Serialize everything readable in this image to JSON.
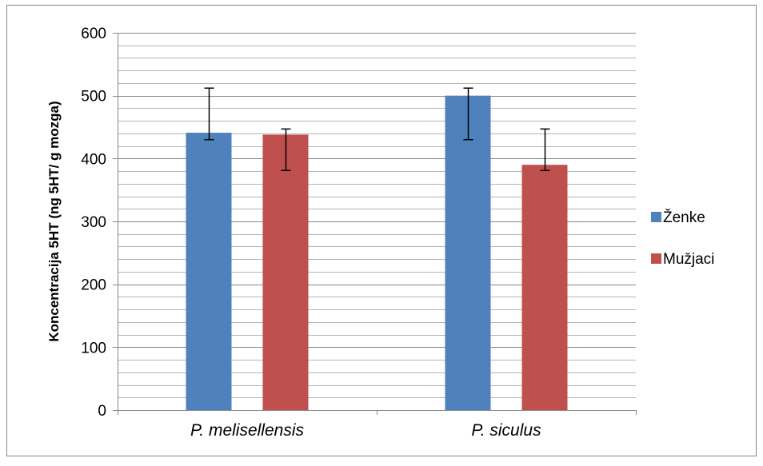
{
  "chart_data": {
    "type": "bar",
    "title": "",
    "xlabel": "",
    "ylabel": "Koncentracija 5HT (ng 5HT/ g mozga)",
    "categories": [
      "P. melisellensis",
      "P. siculus"
    ],
    "ylim": [
      0,
      600
    ],
    "yticks": [
      "0",
      "100",
      "200",
      "300",
      "400",
      "500",
      "600"
    ],
    "minor_gridlines_per_major": 5,
    "grid": true,
    "legend_position": "right",
    "series": [
      {
        "name": "Ženke",
        "color": "#4F81BD",
        "values": [
          441,
          500
        ],
        "error_low": [
          430,
          430
        ],
        "error_high": [
          512,
          512
        ]
      },
      {
        "name": "Mužjaci",
        "color": "#C0504D",
        "values": [
          438,
          390
        ],
        "error_low": [
          381,
          381
        ],
        "error_high": [
          447,
          447
        ]
      }
    ]
  }
}
